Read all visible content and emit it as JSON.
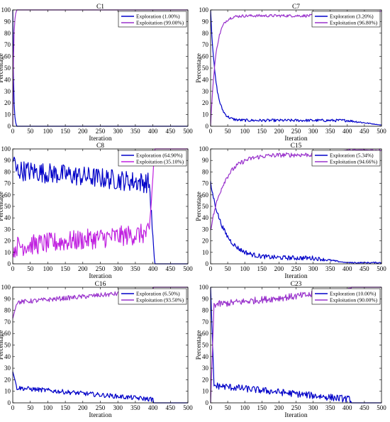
{
  "figure": {
    "xlabel": "Iteration",
    "ylabel": "Percentage"
  },
  "chart_data": [
    {
      "type": "line",
      "title": "C1",
      "xlabel": "Iteration",
      "ylabel": "Percentage",
      "xlim": [
        0,
        500
      ],
      "ylim": [
        0,
        100
      ],
      "xticks": [
        0,
        50,
        100,
        150,
        200,
        250,
        300,
        350,
        400,
        450,
        500
      ],
      "yticks": [
        0,
        10,
        20,
        30,
        40,
        50,
        60,
        70,
        80,
        90,
        100
      ],
      "legend_position": "top-right",
      "series": [
        {
          "name": "Exploration (1.00%)",
          "color": "#0000c8",
          "shape": "decay",
          "start": 100,
          "end": 0,
          "decay_len": 12,
          "end_iter": 12,
          "noise": 0,
          "plateau": 0
        },
        {
          "name": "Exploitation (99.00%)",
          "color": "#9932cc",
          "shape": "rise",
          "start": 0,
          "end": 100,
          "decay_len": 12,
          "end_iter": 12,
          "noise": 0,
          "plateau": 0
        }
      ]
    },
    {
      "type": "line",
      "title": "C7",
      "xlabel": "Iteration",
      "ylabel": "Percentage",
      "xlim": [
        0,
        500
      ],
      "ylim": [
        0,
        100
      ],
      "xticks": [
        0,
        50,
        100,
        150,
        200,
        250,
        300,
        350,
        400,
        450,
        500
      ],
      "yticks": [
        0,
        10,
        20,
        30,
        40,
        50,
        60,
        70,
        80,
        90,
        100
      ],
      "legend_position": "top-right",
      "series": [
        {
          "name": "Exploration (3.20%)",
          "color": "#0000c8",
          "shape": "decay",
          "start": 100,
          "end": 1,
          "decay_len": 15,
          "end_iter": 500,
          "noise": 1.2,
          "plateau": 5
        },
        {
          "name": "Exploitation (96.80%)",
          "color": "#9932cc",
          "shape": "rise",
          "start": 0,
          "end": 99,
          "decay_len": 15,
          "end_iter": 500,
          "noise": 1.2,
          "plateau": 95
        }
      ]
    },
    {
      "type": "line",
      "title": "C8",
      "xlabel": "Iteration",
      "ylabel": "Percentage",
      "xlim": [
        0,
        500
      ],
      "ylim": [
        0,
        100
      ],
      "xticks": [
        0,
        50,
        100,
        150,
        200,
        250,
        300,
        350,
        400,
        450,
        500
      ],
      "yticks": [
        0,
        10,
        20,
        30,
        40,
        50,
        60,
        70,
        80,
        90,
        100
      ],
      "legend_position": "top-right",
      "series": [
        {
          "name": "Exploration (64.90%)",
          "color": "#0000c8",
          "shape": "noisy-drop",
          "start": 90,
          "end": 0,
          "decay_len": 10,
          "end_iter": 405,
          "noise": 9,
          "plateau": 82,
          "drift": -12
        },
        {
          "name": "Exploitation (35.10%)",
          "color": "#c020e0",
          "shape": "noisy-rise",
          "start": 10,
          "end": 100,
          "decay_len": 10,
          "end_iter": 405,
          "noise": 9,
          "plateau": 15,
          "drift": 12
        }
      ]
    },
    {
      "type": "line",
      "title": "C15",
      "xlabel": "Iteration",
      "ylabel": "Percentage",
      "xlim": [
        0,
        500
      ],
      "ylim": [
        0,
        100
      ],
      "xticks": [
        0,
        50,
        100,
        150,
        200,
        250,
        300,
        350,
        400,
        450,
        500
      ],
      "yticks": [
        0,
        10,
        20,
        30,
        40,
        50,
        60,
        70,
        80,
        90,
        100
      ],
      "legend_position": "top-right",
      "series": [
        {
          "name": "Exploration (5.34%)",
          "color": "#0000c8",
          "shape": "decay",
          "start": 70,
          "end": 1,
          "decay_len": 40,
          "end_iter": 400,
          "noise": 2,
          "plateau": 5
        },
        {
          "name": "Exploitation (94.66%)",
          "color": "#9932cc",
          "shape": "rise",
          "start": 30,
          "end": 99,
          "decay_len": 40,
          "end_iter": 400,
          "noise": 2,
          "plateau": 95
        }
      ]
    },
    {
      "type": "line",
      "title": "C16",
      "xlabel": "Iteration",
      "ylabel": "Percentage",
      "xlim": [
        0,
        500
      ],
      "ylim": [
        0,
        100
      ],
      "xticks": [
        0,
        50,
        100,
        150,
        200,
        250,
        300,
        350,
        400,
        450,
        500
      ],
      "yticks": [
        0,
        10,
        20,
        30,
        40,
        50,
        60,
        70,
        80,
        90,
        100
      ],
      "legend_position": "top-right",
      "series": [
        {
          "name": "Exploration (6.50%)",
          "color": "#0000c8",
          "shape": "step-decay",
          "start": 27,
          "end": 0,
          "decay_len": 12,
          "end_iter": 400,
          "noise": 2,
          "plateau": 13
        },
        {
          "name": "Exploitation (93.50%)",
          "color": "#9932cc",
          "shape": "step-rise",
          "start": 73,
          "end": 100,
          "decay_len": 12,
          "end_iter": 400,
          "noise": 2,
          "plateau": 87
        }
      ]
    },
    {
      "type": "line",
      "title": "C23",
      "xlabel": "Iteration",
      "ylabel": "Percentage",
      "xlim": [
        0,
        500
      ],
      "ylim": [
        0,
        100
      ],
      "xticks": [
        0,
        50,
        100,
        150,
        200,
        250,
        300,
        350,
        400,
        450,
        500
      ],
      "yticks": [
        0,
        10,
        20,
        30,
        40,
        50,
        60,
        70,
        80,
        90,
        100
      ],
      "legend_position": "top-right",
      "series": [
        {
          "name": "Exploration (10.00%)",
          "color": "#0000c8",
          "shape": "step-decay",
          "start": 100,
          "end": 0,
          "decay_len": 10,
          "end_iter": 410,
          "noise": 3,
          "plateau": 15
        },
        {
          "name": "Exploitation (90.00%)",
          "color": "#9932cc",
          "shape": "step-rise",
          "start": 0,
          "end": 100,
          "decay_len": 10,
          "end_iter": 410,
          "noise": 3,
          "plateau": 85
        }
      ]
    }
  ]
}
